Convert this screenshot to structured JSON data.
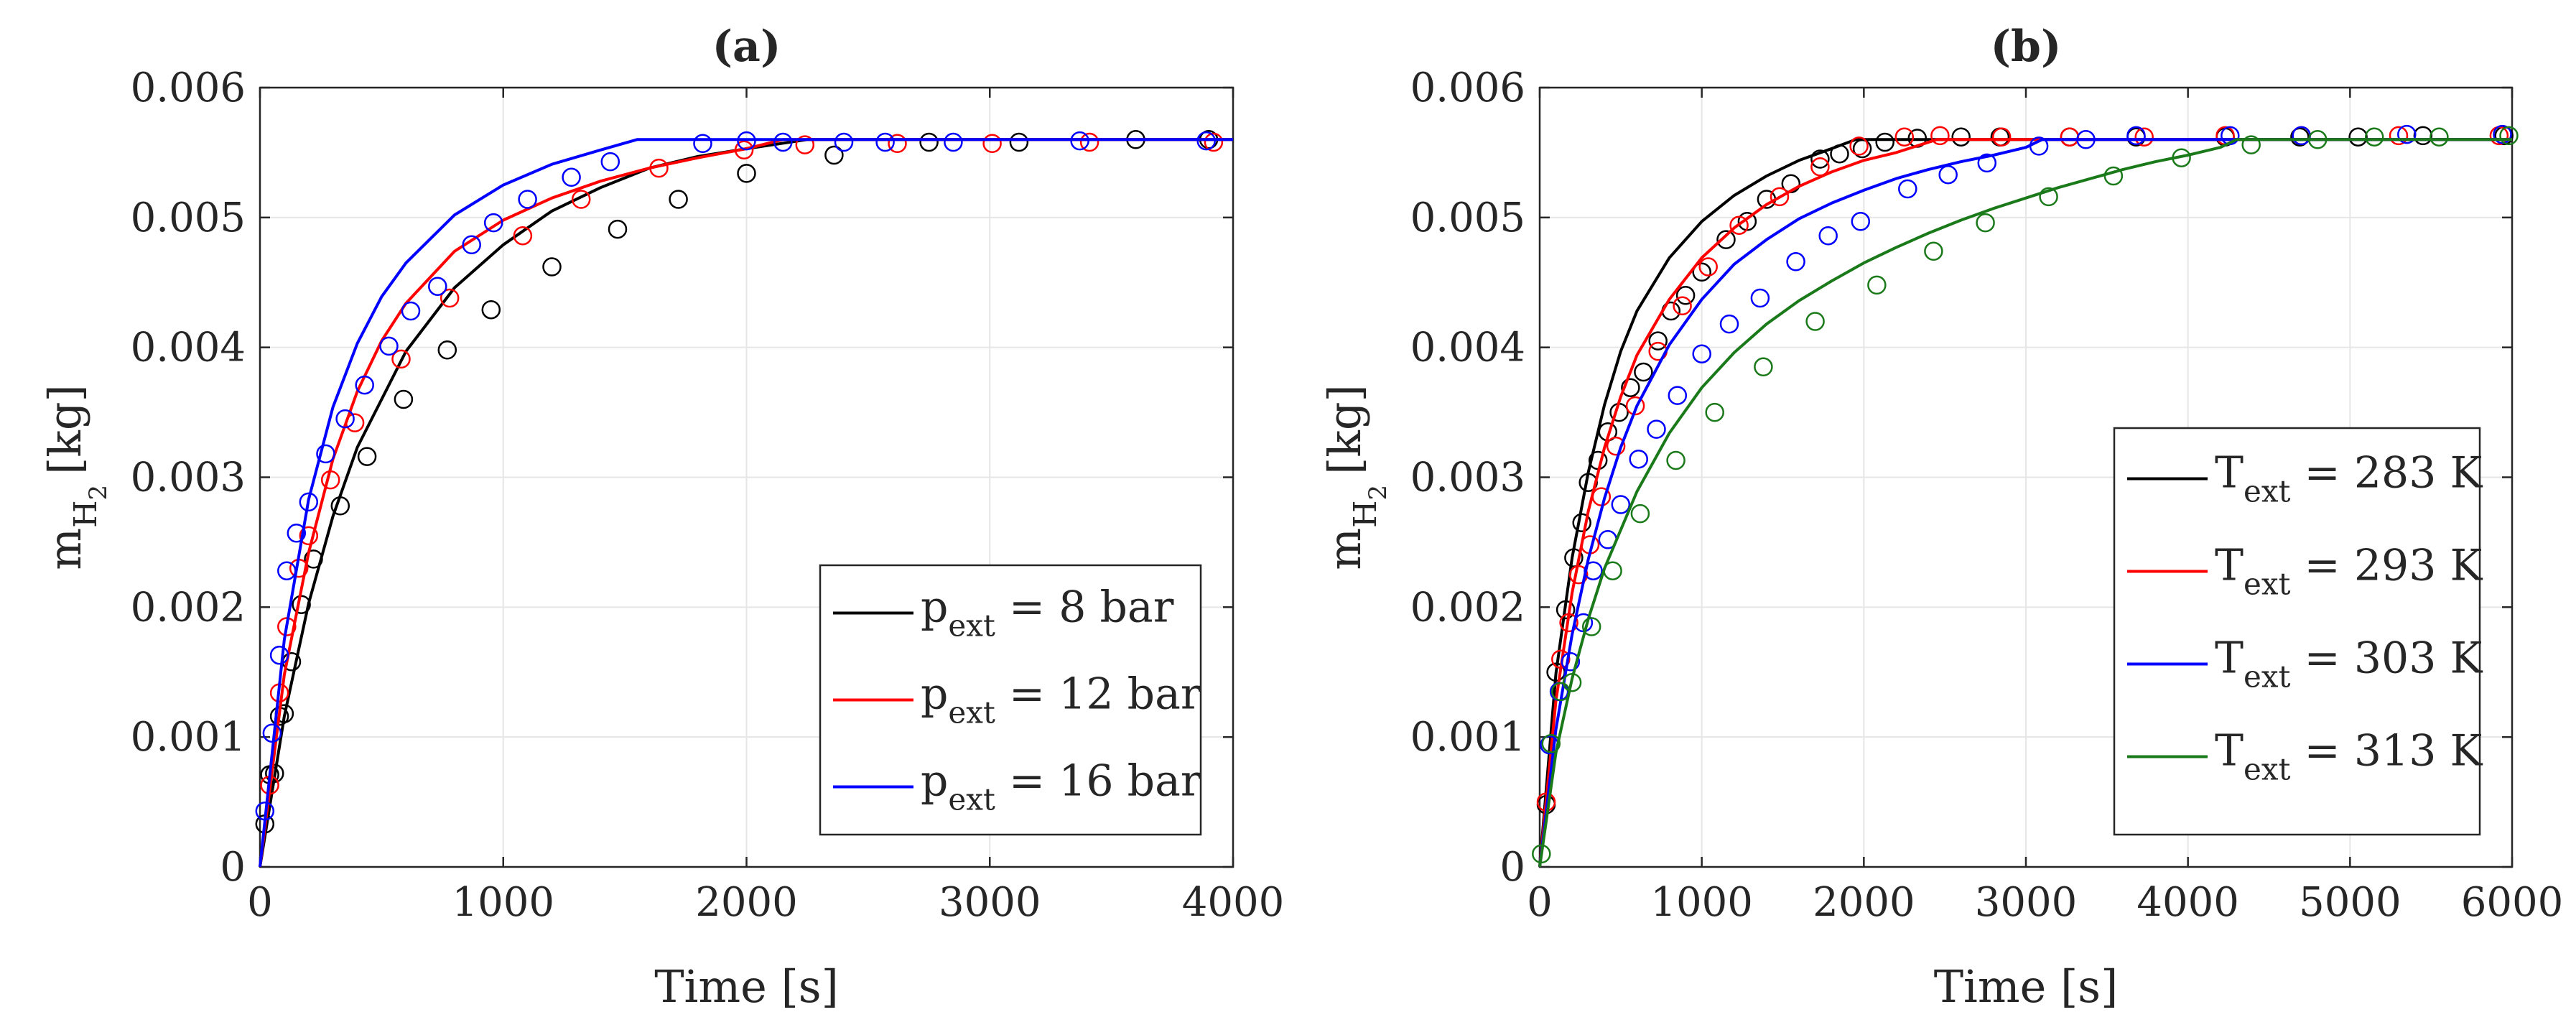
{
  "chart_data": [
    {
      "type": "line",
      "title": "(a)",
      "xlabel": "Time [s]",
      "ylabel": {
        "main": "m",
        "sub": "H",
        "subsub": "2",
        "unit": "[kg]"
      },
      "xlim": [
        0,
        4000
      ],
      "ylim": [
        0,
        0.006
      ],
      "xticks": [
        0,
        1000,
        2000,
        3000,
        4000
      ],
      "xtick_labels": [
        "0",
        "1000",
        "2000",
        "3000",
        "4000"
      ],
      "yticks": [
        0,
        0.001,
        0.002,
        0.003,
        0.004,
        0.005,
        0.006
      ],
      "ytick_labels": [
        "0",
        "0.001",
        "0.002",
        "0.003",
        "0.004",
        "0.005",
        "0.006"
      ],
      "grid": true,
      "legend_position": "bottom-right",
      "series": [
        {
          "name": "p_ext = 8 bar",
          "legend": {
            "var": "p",
            "sub": "ext",
            "rest": " = 8 bar"
          },
          "color": "#000000",
          "model": {
            "x": [
              0,
              100,
              200,
              300,
              400,
              600,
              800,
              1000,
              1200,
              1400,
              1600,
              1800,
              2000,
              2250,
              2300,
              3000,
              4000
            ],
            "y": [
              0,
              0.00116,
              0.00203,
              0.0027,
              0.00323,
              0.00397,
              0.00446,
              0.00479,
              0.00505,
              0.00523,
              0.00538,
              0.00547,
              0.00553,
              0.0056,
              0.0056,
              0.0056,
              0.0056
            ]
          },
          "measured": {
            "x": [
              20,
              40,
              60,
              80,
              100,
              130,
              170,
              220,
              330,
              440,
              590,
              770,
              950,
              1200,
              1470,
              1720,
              2000,
              2360,
              2750,
              3120,
              3600,
              3900
            ],
            "y": [
              0.00033,
              0.00071,
              0.00072,
              0.00116,
              0.00118,
              0.00158,
              0.00202,
              0.00237,
              0.00278,
              0.00316,
              0.0036,
              0.00398,
              0.00429,
              0.00462,
              0.00491,
              0.00514,
              0.00534,
              0.00548,
              0.00558,
              0.00558,
              0.0056,
              0.0056
            ]
          }
        },
        {
          "name": "p_ext = 12 bar",
          "legend": {
            "var": "p",
            "sub": "ext",
            "rest": " = 12 bar"
          },
          "color": "#ff0000",
          "model": {
            "x": [
              0,
              100,
              200,
              300,
              400,
              500,
              600,
              800,
              1000,
              1200,
              1400,
              1600,
              1800,
              2000,
              2150,
              2200,
              3000,
              4000
            ],
            "y": [
              0,
              0.00148,
              0.00242,
              0.00314,
              0.00366,
              0.00405,
              0.00434,
              0.00474,
              0.00498,
              0.00515,
              0.00528,
              0.00538,
              0.00546,
              0.00553,
              0.0056,
              0.0056,
              0.0056,
              0.0056
            ]
          },
          "measured": {
            "x": [
              40,
              80,
              110,
              160,
              200,
              290,
              390,
              580,
              780,
              1080,
              1320,
              1640,
              1990,
              2240,
              2620,
              3010,
              3410,
              3920
            ],
            "y": [
              0.00063,
              0.00134,
              0.00185,
              0.0023,
              0.00255,
              0.00298,
              0.00342,
              0.00391,
              0.00438,
              0.00486,
              0.00514,
              0.00538,
              0.00552,
              0.00556,
              0.00557,
              0.00557,
              0.00558,
              0.00558
            ]
          }
        },
        {
          "name": "p_ext = 16 bar",
          "legend": {
            "var": "p",
            "sub": "ext",
            "rest": " = 16 bar"
          },
          "color": "#0000ff",
          "model": {
            "x": [
              0,
              100,
              200,
              300,
              400,
              500,
              600,
              800,
              1000,
              1200,
              1400,
              1550,
              1600,
              2000,
              3000,
              4000
            ],
            "y": [
              0,
              0.00175,
              0.00283,
              0.00354,
              0.00403,
              0.00439,
              0.00465,
              0.00502,
              0.00525,
              0.00541,
              0.00552,
              0.0056,
              0.0056,
              0.0056,
              0.0056,
              0.0056
            ]
          },
          "measured": {
            "x": [
              20,
              50,
              80,
              110,
              150,
              200,
              270,
              350,
              430,
              530,
              620,
              730,
              870,
              960,
              1100,
              1280,
              1440,
              1820,
              2000,
              2150,
              2400,
              2570,
              2850,
              3370,
              3890
            ],
            "y": [
              0.00043,
              0.00103,
              0.00163,
              0.00228,
              0.00257,
              0.00281,
              0.00318,
              0.00345,
              0.00371,
              0.00401,
              0.00428,
              0.00447,
              0.00479,
              0.00496,
              0.00514,
              0.00531,
              0.00543,
              0.00557,
              0.00559,
              0.00558,
              0.00558,
              0.00558,
              0.00558,
              0.00559,
              0.00559
            ]
          }
        }
      ]
    },
    {
      "type": "line",
      "title": "(b)",
      "xlabel": "Time [s]",
      "ylabel": {
        "main": "m",
        "sub": "H",
        "subsub": "2",
        "unit": "[kg]"
      },
      "xlim": [
        0,
        6000
      ],
      "ylim": [
        0,
        0.006
      ],
      "xticks": [
        0,
        1000,
        2000,
        3000,
        4000,
        5000,
        6000
      ],
      "xtick_labels": [
        "0",
        "1000",
        "2000",
        "3000",
        "4000",
        "5000",
        "6000"
      ],
      "yticks": [
        0,
        0.001,
        0.002,
        0.003,
        0.004,
        0.005,
        0.006
      ],
      "ytick_labels": [
        "0",
        "0.001",
        "0.002",
        "0.003",
        "0.004",
        "0.005",
        "0.006"
      ],
      "grid": true,
      "legend_position": "bottom-right",
      "series": [
        {
          "name": "T_ext = 283 K",
          "legend": {
            "var": "T",
            "sub": "ext",
            "rest": " = 283 K"
          },
          "color": "#000000",
          "model": {
            "x": [
              0,
              100,
              200,
              300,
              400,
              500,
              600,
              800,
              1000,
              1200,
              1400,
              1600,
              1800,
              1950,
              2000,
              3000,
              6000
            ],
            "y": [
              0,
              0.00149,
              0.00238,
              0.00304,
              0.00356,
              0.00397,
              0.00428,
              0.00469,
              0.00497,
              0.00517,
              0.00532,
              0.00544,
              0.00553,
              0.0056,
              0.0056,
              0.0056,
              0.0056
            ]
          },
          "measured": {
            "x": [
              40,
              100,
              160,
              210,
              260,
              300,
              360,
              420,
              490,
              560,
              640,
              730,
              810,
              900,
              1000,
              1150,
              1280,
              1400,
              1550,
              1730,
              1850,
              1990,
              2130,
              2330,
              2600,
              2840,
              3270,
              3680,
              4230,
              4690,
              5050,
              5450,
              5950
            ],
            "y": [
              0.00048,
              0.0015,
              0.00198,
              0.00238,
              0.00265,
              0.00296,
              0.00313,
              0.00335,
              0.0035,
              0.00369,
              0.00381,
              0.00405,
              0.00428,
              0.0044,
              0.00458,
              0.00483,
              0.00497,
              0.00514,
              0.00526,
              0.00545,
              0.00549,
              0.00553,
              0.00558,
              0.00561,
              0.00562,
              0.00562,
              0.00562,
              0.00562,
              0.00562,
              0.00562,
              0.00562,
              0.00563,
              0.00563
            ]
          }
        },
        {
          "name": "T_ext = 293 K",
          "legend": {
            "var": "T",
            "sub": "ext",
            "rest": " = 293 K"
          },
          "color": "#ff0000",
          "model": {
            "x": [
              0,
              100,
              200,
              300,
              400,
              500,
              600,
              800,
              1000,
              1200,
              1400,
              1600,
              1800,
              2000,
              2200,
              2450,
              2500,
              3000,
              6000
            ],
            "y": [
              0,
              0.00128,
              0.00211,
              0.00274,
              0.00323,
              0.00362,
              0.00394,
              0.00437,
              0.00469,
              0.00492,
              0.0051,
              0.00524,
              0.00535,
              0.00544,
              0.0055,
              0.0056,
              0.0056,
              0.0056,
              0.0056
            ]
          },
          "measured": {
            "x": [
              40,
              130,
              180,
              240,
              310,
              380,
              470,
              590,
              730,
              880,
              1040,
              1230,
              1480,
              1730,
              1970,
              2250,
              2470,
              2850,
              3270,
              3730,
              4230,
              4700,
              5300,
              5920
            ],
            "y": [
              0.0005,
              0.0016,
              0.00188,
              0.00225,
              0.00248,
              0.00285,
              0.00324,
              0.00355,
              0.00397,
              0.00432,
              0.00462,
              0.00494,
              0.00516,
              0.00539,
              0.00555,
              0.00562,
              0.00563,
              0.00562,
              0.00562,
              0.00562,
              0.00563,
              0.00563,
              0.00563,
              0.00563
            ]
          }
        },
        {
          "name": "T_ext = 303 K",
          "legend": {
            "var": "T",
            "sub": "ext",
            "rest": " = 303 K"
          },
          "color": "#0000ff",
          "model": {
            "x": [
              0,
              100,
              200,
              300,
              400,
              500,
              600,
              800,
              1000,
              1200,
              1400,
              1600,
              1800,
              2000,
              2200,
              2400,
              2600,
              2800,
              3000,
              3100,
              4000,
              6000
            ],
            "y": [
              0,
              0.00106,
              0.00179,
              0.00237,
              0.00284,
              0.00323,
              0.00355,
              0.00402,
              0.00437,
              0.00464,
              0.00483,
              0.00499,
              0.00511,
              0.00521,
              0.0053,
              0.00537,
              0.00543,
              0.00548,
              0.00554,
              0.0056,
              0.0056,
              0.0056
            ]
          },
          "measured": {
            "x": [
              60,
              120,
              190,
              270,
              330,
              420,
              500,
              610,
              720,
              850,
              1000,
              1170,
              1360,
              1580,
              1780,
              1980,
              2270,
              2520,
              2760,
              3080,
              3370,
              3680,
              4260,
              4700,
              5350,
              5940
            ],
            "y": [
              0.00094,
              0.00135,
              0.00158,
              0.00188,
              0.00228,
              0.00252,
              0.00279,
              0.00314,
              0.00337,
              0.00363,
              0.00395,
              0.00418,
              0.00438,
              0.00466,
              0.00486,
              0.00497,
              0.00522,
              0.00533,
              0.00542,
              0.00555,
              0.0056,
              0.00563,
              0.00563,
              0.00563,
              0.00564,
              0.00564
            ]
          }
        },
        {
          "name": "T_ext = 313 K",
          "legend": {
            "var": "T",
            "sub": "ext",
            "rest": " = 313 K"
          },
          "color": "#1a7a1a",
          "model": {
            "x": [
              0,
              100,
              200,
              300,
              400,
              600,
              800,
              1000,
              1200,
              1400,
              1600,
              1800,
              2000,
              2200,
              2400,
              2600,
              2800,
              3000,
              3200,
              3400,
              3600,
              3800,
              4000,
              4200,
              4300,
              5000,
              6000
            ],
            "y": [
              0,
              0.00088,
              0.00145,
              0.00191,
              0.0023,
              0.00289,
              0.00334,
              0.00369,
              0.00396,
              0.00418,
              0.00436,
              0.00451,
              0.00465,
              0.00477,
              0.00488,
              0.00498,
              0.00507,
              0.00515,
              0.00523,
              0.0053,
              0.00537,
              0.00543,
              0.00548,
              0.00554,
              0.0056,
              0.0056,
              0.0056
            ]
          },
          "measured": {
            "x": [
              10,
              70,
              130,
              200,
              320,
              450,
              620,
              840,
              1080,
              1380,
              1700,
              2080,
              2430,
              2750,
              3140,
              3540,
              3960,
              4390,
              4800,
              5150,
              5550,
              5980
            ],
            "y": [
              0.0001,
              0.00095,
              0.00135,
              0.00142,
              0.00185,
              0.00228,
              0.00272,
              0.00313,
              0.0035,
              0.00385,
              0.0042,
              0.00448,
              0.00474,
              0.00496,
              0.00516,
              0.00532,
              0.00546,
              0.00556,
              0.0056,
              0.00562,
              0.00562,
              0.00563
            ]
          }
        }
      ]
    }
  ]
}
